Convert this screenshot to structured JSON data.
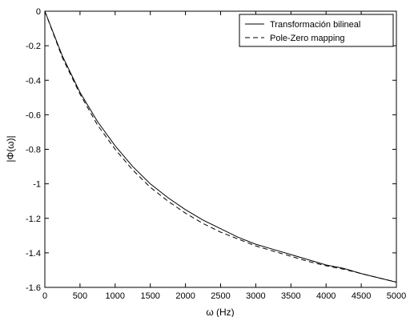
{
  "chart_data": {
    "type": "line",
    "title": "",
    "xlabel": "ω (Hz)",
    "ylabel": "|Φ(ω)|",
    "xlim": [
      0,
      5000
    ],
    "ylim": [
      -1.6,
      0
    ],
    "grid": false,
    "legend_position": "top-right",
    "x_ticks": [
      0,
      500,
      1000,
      1500,
      2000,
      2500,
      3000,
      3500,
      4000,
      4500,
      5000
    ],
    "x_tick_labels": [
      "0",
      "500",
      "1000",
      "1500",
      "2000",
      "2500",
      "3000",
      "3500",
      "4000",
      "4500",
      "5000"
    ],
    "y_ticks": [
      0,
      -0.2,
      -0.4,
      -0.6,
      -0.8,
      -1,
      -1.2,
      -1.4,
      -1.6
    ],
    "y_tick_labels": [
      "0",
      "-0.2",
      "-0.4",
      "-0.6",
      "-0.8",
      "-1",
      "-1.2",
      "-1.4",
      "-1.6"
    ],
    "series": [
      {
        "name": "Transformación bilineal",
        "style": "solid",
        "color": "#000000",
        "x": [
          0,
          250,
          500,
          750,
          1000,
          1250,
          1500,
          1750,
          2000,
          2250,
          2500,
          2750,
          3000,
          3250,
          3500,
          3750,
          4000,
          4250,
          4500,
          4750,
          5000
        ],
        "y": [
          0,
          -0.26,
          -0.47,
          -0.64,
          -0.78,
          -0.9,
          -1.0,
          -1.08,
          -1.15,
          -1.21,
          -1.26,
          -1.31,
          -1.35,
          -1.38,
          -1.41,
          -1.44,
          -1.47,
          -1.49,
          -1.52,
          -1.545,
          -1.57
        ]
      },
      {
        "name": "Pole-Zero mapping",
        "style": "dashed",
        "color": "#000000",
        "x": [
          0,
          250,
          500,
          750,
          1000,
          1250,
          1500,
          1750,
          2000,
          2250,
          2500,
          2750,
          3000,
          3250,
          3500,
          3750,
          4000,
          4250,
          4500,
          4750,
          5000
        ],
        "y": [
          0,
          -0.27,
          -0.48,
          -0.66,
          -0.8,
          -0.92,
          -1.02,
          -1.1,
          -1.17,
          -1.23,
          -1.28,
          -1.32,
          -1.36,
          -1.39,
          -1.42,
          -1.45,
          -1.475,
          -1.495,
          -1.52,
          -1.545,
          -1.57
        ]
      }
    ]
  }
}
